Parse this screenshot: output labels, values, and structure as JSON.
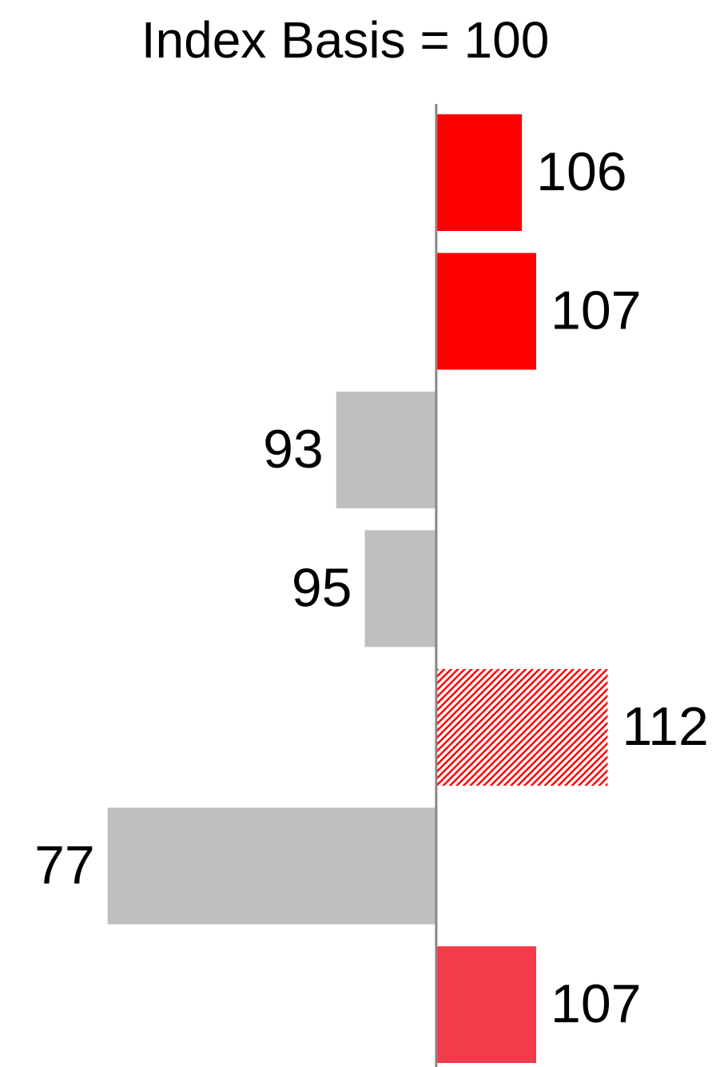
{
  "chart_data": {
    "type": "bar",
    "orientation": "horizontal",
    "title": "Index Basis = 100",
    "categories": [
      null,
      null,
      null,
      null,
      null,
      null,
      null
    ],
    "values": [
      106,
      107,
      93,
      95,
      112,
      77,
      107
    ],
    "colors": [
      "#ff0000",
      "#ff0000",
      "#bfbfbf",
      "#bfbfbf",
      "#ff0000",
      "#bfbfbf",
      "#f23c4b"
    ],
    "hatched": [
      false,
      false,
      false,
      false,
      true,
      false,
      false
    ],
    "baseline": 100,
    "xlim": [
      75,
      115
    ]
  }
}
